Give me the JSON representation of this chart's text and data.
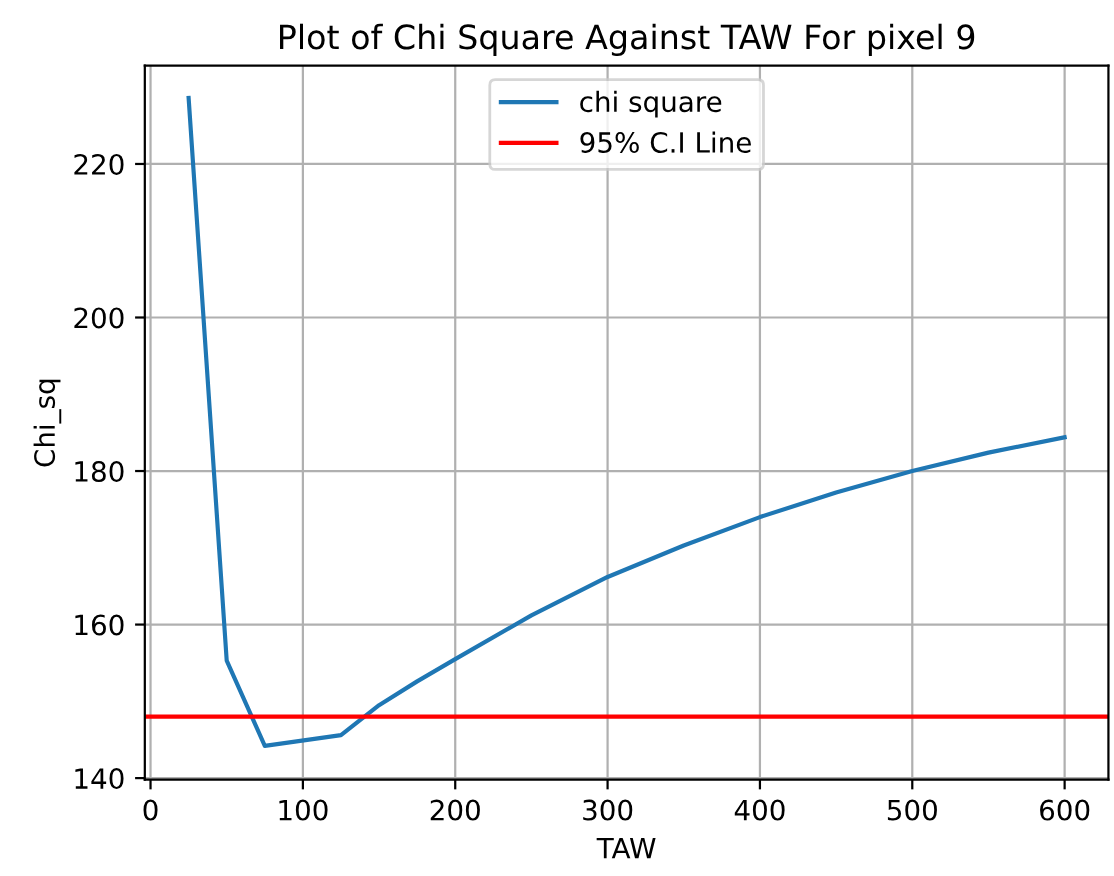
{
  "chart_data": {
    "type": "line",
    "title": "Plot of Chi Square Against TAW For pixel 9",
    "xlabel": "TAW",
    "ylabel": "Chi_sq",
    "series": [
      {
        "name": "chi square",
        "color": "#1f77b4",
        "x": [
          25,
          50,
          75,
          125,
          150,
          175,
          200,
          250,
          300,
          350,
          400,
          450,
          500,
          550,
          600
        ],
        "values": [
          228.6,
          155.3,
          144.2,
          145.6,
          149.5,
          152.6,
          155.5,
          161.2,
          166.2,
          170.3,
          174.0,
          177.2,
          180.0,
          182.4,
          184.4
        ]
      }
    ],
    "ref_lines": [
      {
        "axis": "y",
        "value": 148.0,
        "label": "95% C.I Line",
        "color": "#ff0000"
      }
    ],
    "xlim": [
      -3.75,
      628.75
    ],
    "ylim": [
      139.8,
      232.8
    ],
    "xticks": [
      0,
      100,
      200,
      300,
      400,
      500,
      600
    ],
    "yticks": [
      140,
      160,
      180,
      200,
      220
    ],
    "grid": true,
    "legend": "top",
    "line_style": "solid",
    "marker": "none"
  }
}
